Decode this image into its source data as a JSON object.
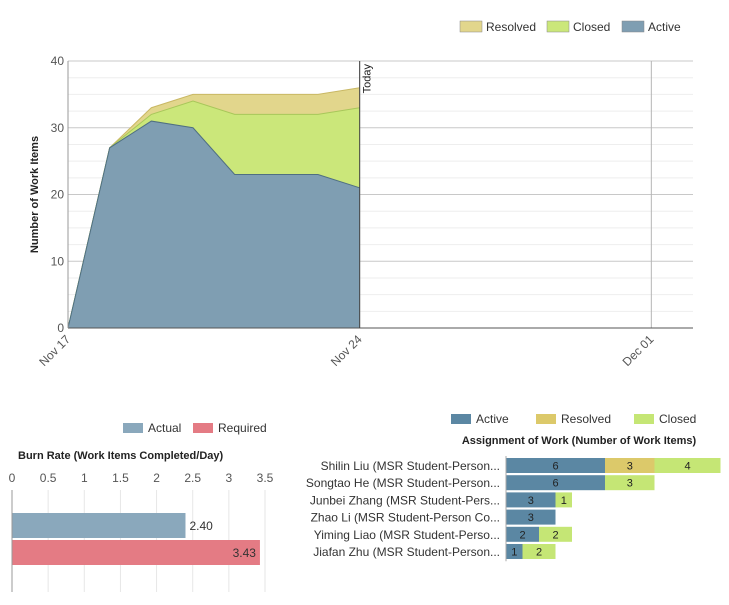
{
  "chart_data": [
    {
      "type": "area",
      "stacked": true,
      "ylabel": "Number of Work Items",
      "ylim": [
        0,
        40
      ],
      "yticks": [
        0,
        10,
        20,
        30,
        40
      ],
      "x": [
        "Nov 17",
        "Nov 18",
        "Nov 19",
        "Nov 20",
        "Nov 21",
        "Nov 22",
        "Nov 23",
        "Nov 24"
      ],
      "xaxis_range": [
        "Nov 17",
        "Dec 02"
      ],
      "xtick_labels": [
        "Nov 17",
        "Nov 24",
        "Dec 01"
      ],
      "today_marker": {
        "label": "Today",
        "x": "Nov 24"
      },
      "legend_position": "top-right",
      "series": [
        {
          "name": "Active",
          "color": "#7f9eb2",
          "values": [
            0,
            27,
            31,
            30,
            23,
            23,
            23,
            21
          ]
        },
        {
          "name": "Closed",
          "color": "#cbe77a",
          "values": [
            0,
            0,
            1,
            4,
            9,
            9,
            9,
            12
          ]
        },
        {
          "name": "Resolved",
          "color": "#e2d68c",
          "values": [
            0,
            0,
            1,
            1,
            3,
            3,
            3,
            3
          ]
        }
      ],
      "legend_order": [
        "Resolved",
        "Closed",
        "Active"
      ]
    },
    {
      "type": "bar",
      "orientation": "horizontal",
      "title": "Burn Rate (Work Items Completed/Day)",
      "xlim": [
        0,
        3.5
      ],
      "xticks": [
        "0",
        "0.5",
        "1",
        "1.5",
        "2",
        "2.5",
        "3",
        "3.5"
      ],
      "legend_position": "top",
      "series": [
        {
          "name": "Actual",
          "color": "#8aa8bc",
          "value": 2.4,
          "label": "2.40"
        },
        {
          "name": "Required",
          "color": "#e47b84",
          "value": 3.43,
          "label": "3.43"
        }
      ]
    },
    {
      "type": "bar",
      "orientation": "horizontal",
      "stacked": true,
      "title": "Assignment of Work (Number of Work Items)",
      "legend_position": "top",
      "categories": [
        "Shilin Liu (MSR Student-Person...",
        "Songtao He (MSR Student-Person...",
        "Junbei Zhang (MSR Student-Pers...",
        "Zhao Li (MSR Student-Person Co...",
        "Yiming Liao (MSR Student-Perso...",
        "Jiafan Zhu (MSR Student-Person..."
      ],
      "series": [
        {
          "name": "Active",
          "color": "#5b87a3",
          "values": [
            6,
            6,
            3,
            3,
            2,
            1
          ]
        },
        {
          "name": "Resolved",
          "color": "#dcc96a",
          "values": [
            3,
            0,
            0,
            0,
            0,
            0
          ]
        },
        {
          "name": "Closed",
          "color": "#c5e675",
          "values": [
            4,
            3,
            1,
            0,
            2,
            2
          ]
        }
      ]
    }
  ]
}
